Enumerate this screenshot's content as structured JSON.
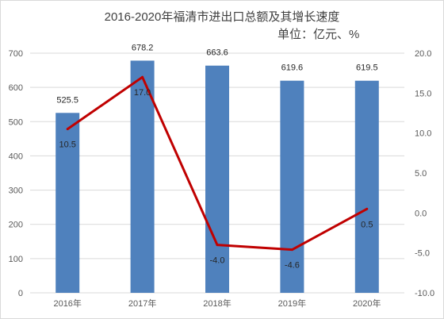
{
  "title": "2016-2020年福清市进出口总额及其增长速度",
  "unit_label": "单位：亿元、%",
  "colors": {
    "bar": "#4f81bd",
    "line": "#c00000",
    "grid": "#d9d9d9",
    "text": "#595959"
  },
  "chart_data": {
    "type": "bar",
    "title": "2016-2020年福清市进出口总额及其增长速度",
    "categories": [
      "2016年",
      "2017年",
      "2018年",
      "2019年",
      "2020年"
    ],
    "series": [
      {
        "type": "bar",
        "axis": "left",
        "values": [
          525.5,
          678.2,
          663.6,
          619.6,
          619.5
        ],
        "labels": [
          "525.5",
          "678.2",
          "663.6",
          "619.6",
          "619.5"
        ]
      },
      {
        "type": "line",
        "axis": "right",
        "values": [
          10.5,
          17.0,
          -4.0,
          -4.6,
          0.5
        ],
        "labels": [
          "10.5",
          "17.0",
          "-4.0",
          "-4.6",
          "0.5"
        ]
      }
    ],
    "y_left": {
      "range": [
        0,
        700
      ],
      "ticks": [
        "0",
        "100",
        "200",
        "300",
        "400",
        "500",
        "600",
        "700"
      ]
    },
    "y_right": {
      "range": [
        -10,
        20
      ],
      "ticks": [
        "-10.0",
        "-5.0",
        "0.0",
        "5.0",
        "10.0",
        "15.0",
        "20.0"
      ]
    },
    "grid": true
  }
}
